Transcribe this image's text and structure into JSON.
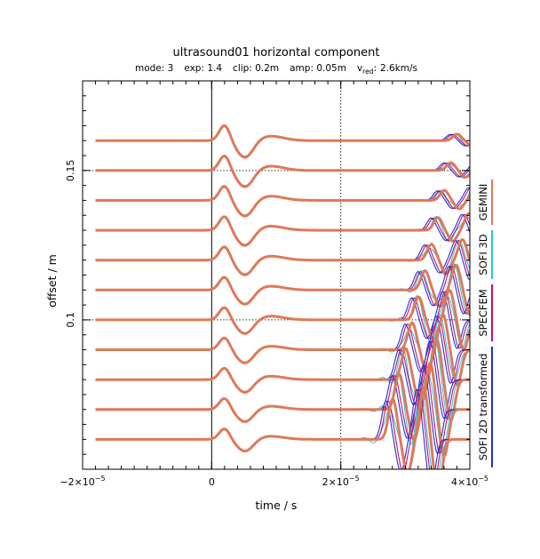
{
  "chart_data": {
    "type": "line",
    "title": "ultrasound01 horizontal component",
    "subtitle": {
      "mode": "mode: 3",
      "exp": "exp: 1.4",
      "clip": "clip: 0.2m",
      "amp": "amp: 0.05m",
      "vred": "2.6km/s",
      "vred_prefix": "v",
      "vred_sub": "red",
      "vred_colon": ":"
    },
    "xlabel": "time / s",
    "ylabel": "offset / m",
    "xlim": [
      -2e-05,
      4e-05
    ],
    "ylim": [
      0.05,
      0.18
    ],
    "x_ticks": [
      {
        "value": -2e-05,
        "mant": "−2×10",
        "exp": "−5"
      },
      {
        "value": 0,
        "mant": "0",
        "exp": ""
      },
      {
        "value": 2e-05,
        "mant": "2×10",
        "exp": "−5"
      },
      {
        "value": 4e-05,
        "mant": "4×10",
        "exp": "−5"
      }
    ],
    "y_ticks": [
      {
        "value": 0.1,
        "label": "0.1"
      },
      {
        "value": 0.15,
        "label": "0.15"
      }
    ],
    "reference_lines": {
      "vertical_x": [
        0,
        2e-05
      ],
      "horizontal_y": [
        0.1,
        0.15
      ]
    },
    "trace_offsets": [
      0.16,
      0.15,
      0.14,
      0.13,
      0.12,
      0.11,
      0.1,
      0.09,
      0.08,
      0.07,
      0.06
    ],
    "series": [
      {
        "name": "SOFI 2D transformed",
        "color": "#1f2fd8"
      },
      {
        "name": "SPECFEM",
        "color": "#c01070"
      },
      {
        "name": "SOFI 3D",
        "color": "#20c8d8"
      },
      {
        "name": "GEMINI",
        "color": "#e07858"
      }
    ],
    "grid": false,
    "legend_placement": "right, vertical"
  }
}
